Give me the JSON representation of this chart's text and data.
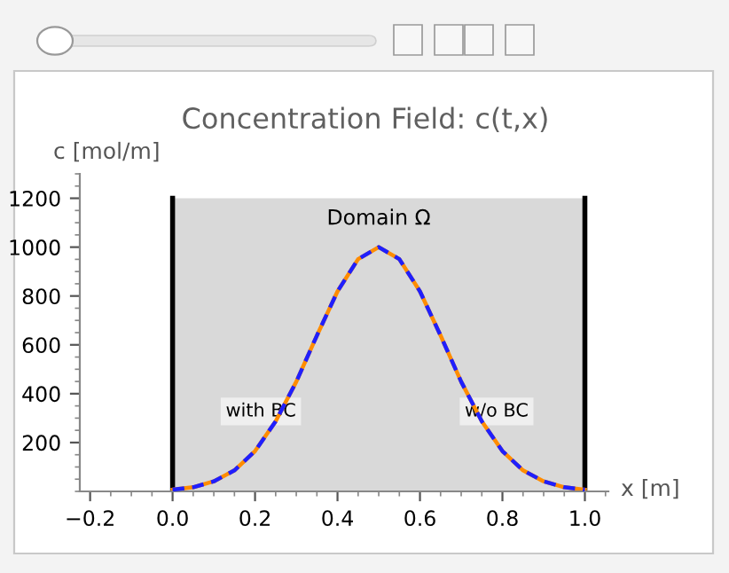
{
  "chart_data": {
    "type": "line",
    "title": "Concentration Field: c(t,x)",
    "xlabel": "x [m]",
    "ylabel": "c [mol/m]",
    "x": [
      0,
      0.05,
      0.1,
      0.15,
      0.2,
      0.25,
      0.3,
      0.35,
      0.4,
      0.45,
      0.5,
      0.55,
      0.6,
      0.65,
      0.7,
      0.75,
      0.8,
      0.85,
      0.9,
      0.95,
      1.0
    ],
    "series": [
      {
        "color": "#ff8c00",
        "line_style": "solid",
        "values": [
          7,
          17,
          41,
          86,
          165,
          287,
          449,
          638,
          819,
          951,
          1000,
          951,
          819,
          638,
          449,
          287,
          165,
          86,
          41,
          17,
          7
        ]
      },
      {
        "color": "#1f1fff",
        "line_style": "dashed",
        "values": [
          7,
          17,
          41,
          86,
          165,
          287,
          449,
          638,
          819,
          951,
          1000,
          951,
          819,
          638,
          449,
          287,
          165,
          86,
          41,
          17,
          7
        ]
      }
    ],
    "xlim": [
      -0.225,
      1.057
    ],
    "ylim": [
      0,
      1300
    ],
    "xticks": [
      {
        "value": -0.2,
        "label": "−0.2"
      },
      {
        "value": 0,
        "label": "0.0"
      },
      {
        "value": 0.2,
        "label": "0.2"
      },
      {
        "value": 0.4,
        "label": "0.4"
      },
      {
        "value": 0.6,
        "label": "0.6"
      },
      {
        "value": 0.8,
        "label": "0.8"
      },
      {
        "value": 1.0,
        "label": "1.0"
      }
    ],
    "yticks": [
      200,
      400,
      600,
      800,
      1000,
      1200
    ],
    "bands": [
      {
        "axis": "x",
        "from": 0,
        "to": 1,
        "label": "Domain Ω",
        "color": "#d9d9d9"
      }
    ],
    "ref_lines": [
      {
        "axis": "x",
        "value": 0,
        "color": "#000000"
      },
      {
        "axis": "x",
        "value": 1,
        "color": "#000000"
      }
    ],
    "annotations": [
      {
        "text": "with BC",
        "x": 0.25,
        "y": 287
      },
      {
        "text": "w/o BC",
        "x": 0.75,
        "y": 287
      }
    ],
    "grid": false,
    "legend": false,
    "marker": "none"
  }
}
